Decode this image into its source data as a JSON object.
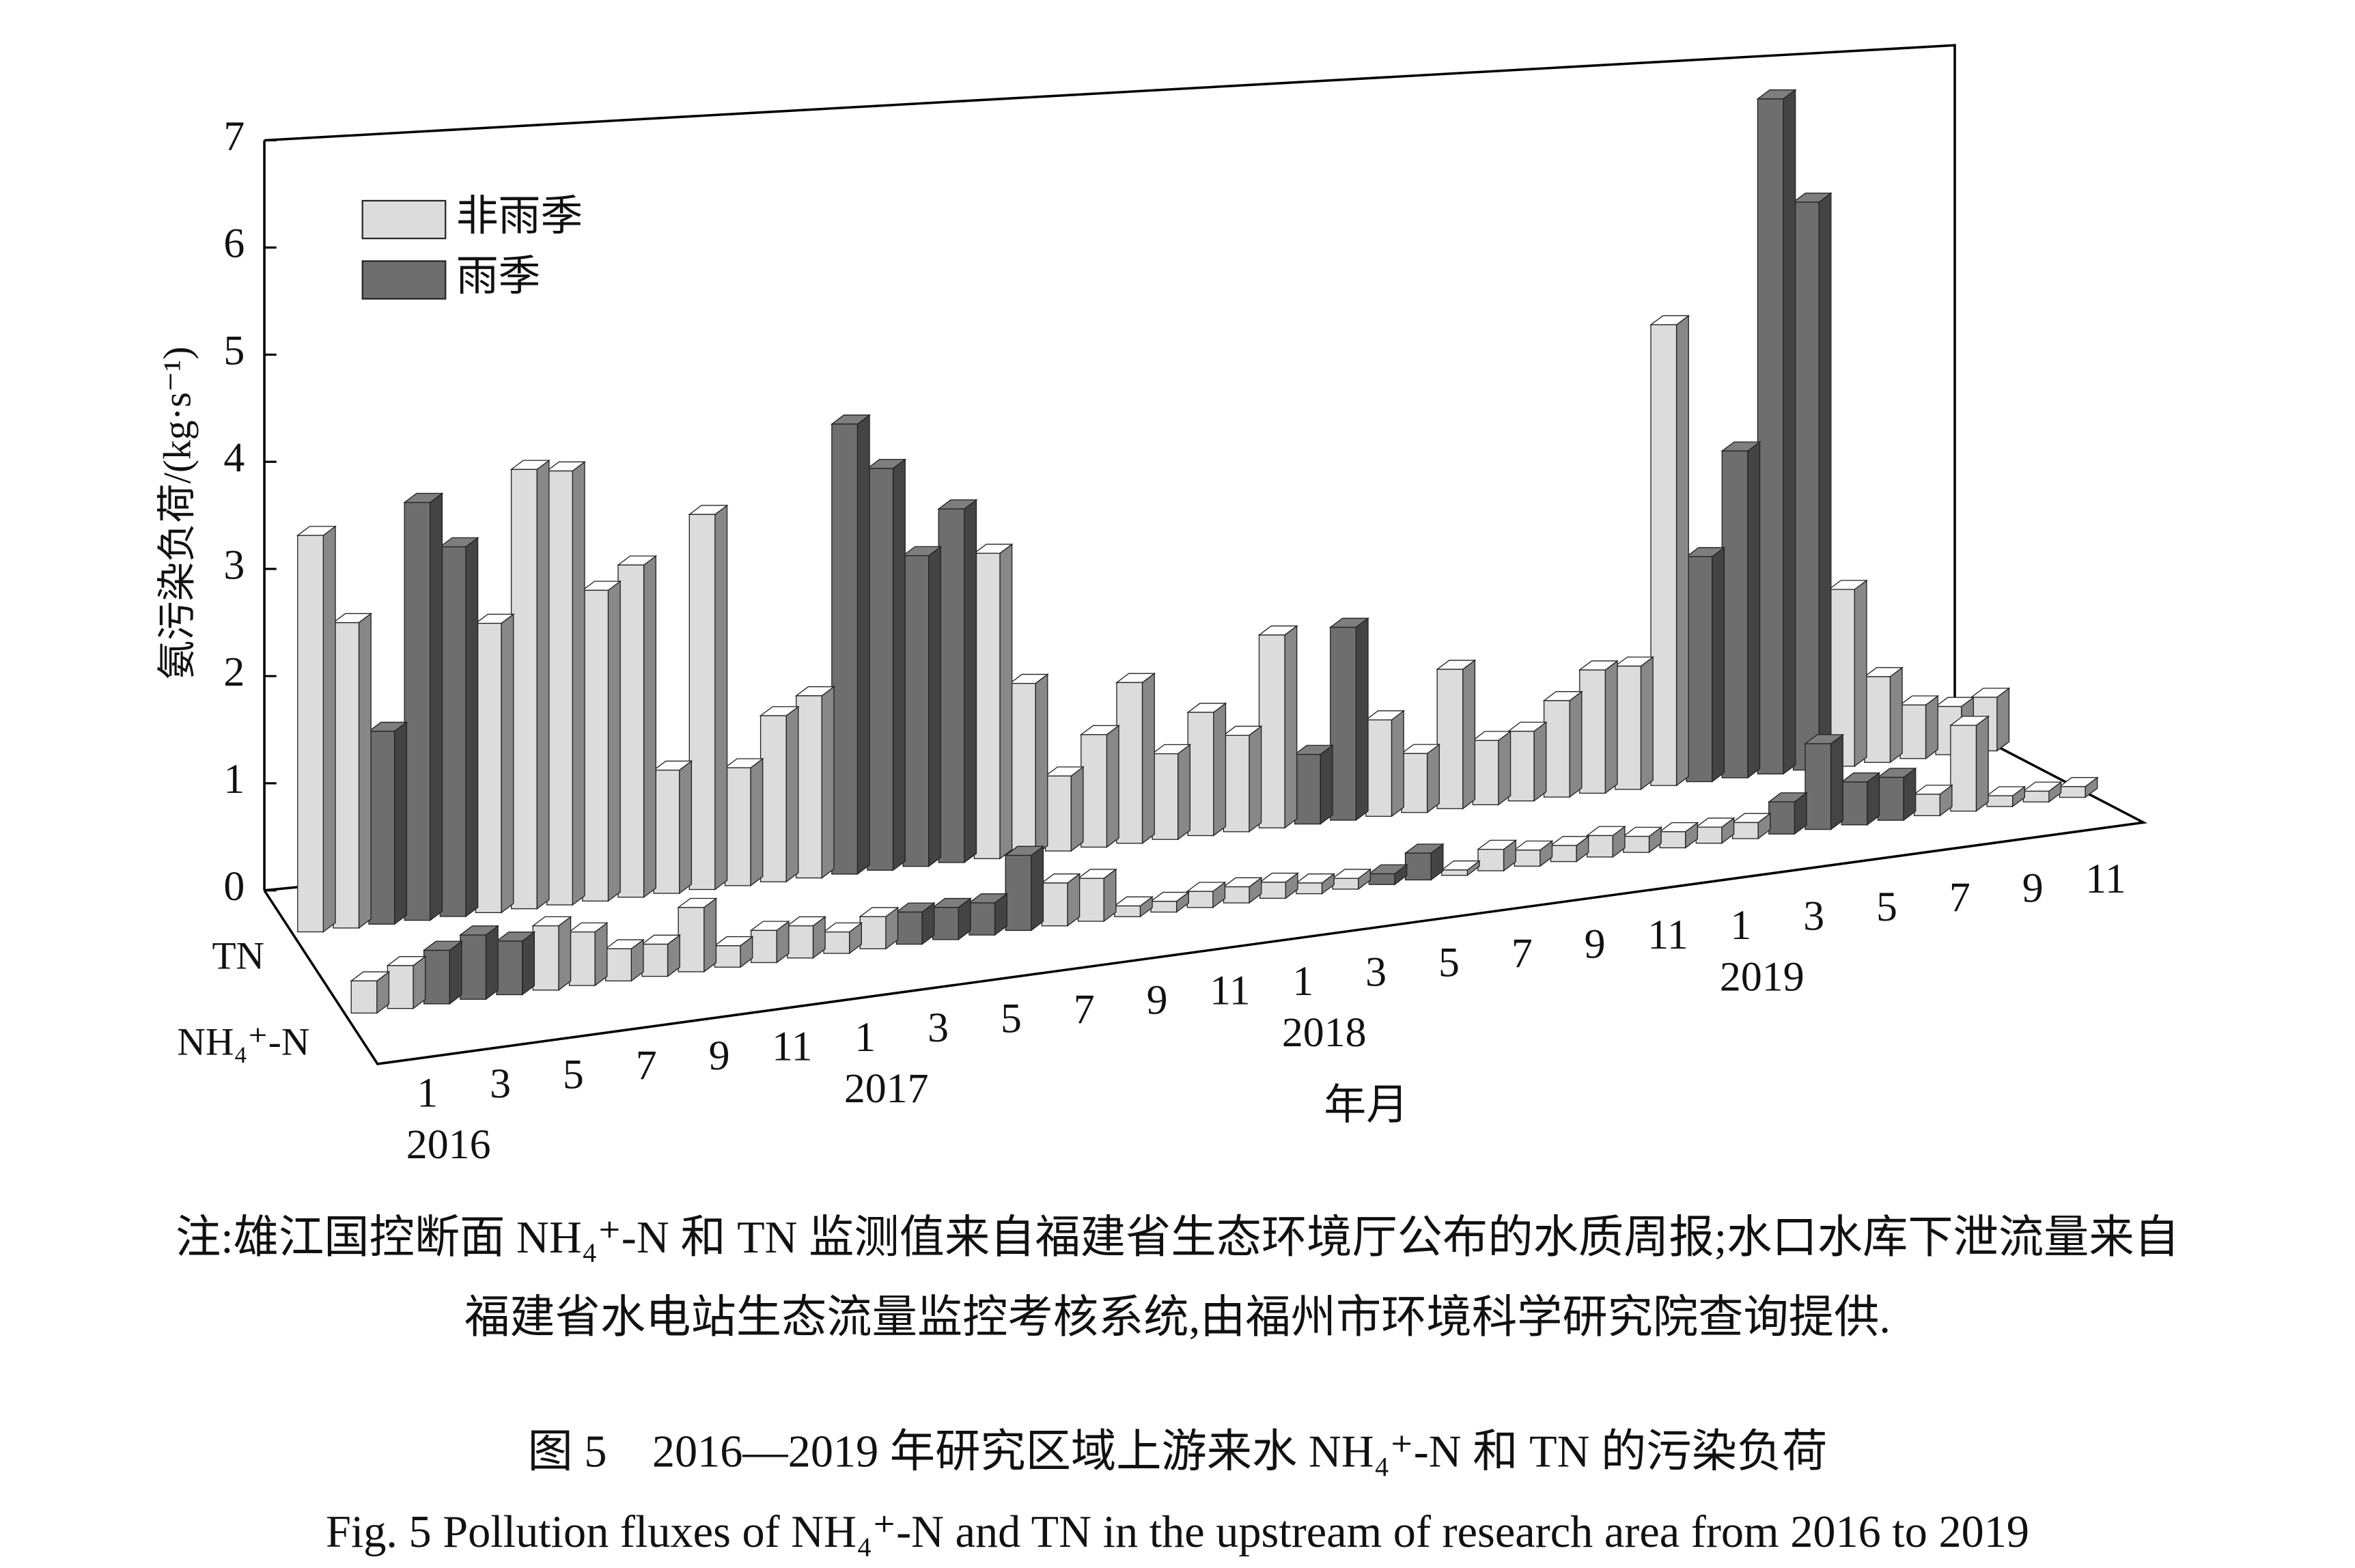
{
  "chart_data": {
    "type": "bar3d",
    "ylabel": "氨污染负荷/(kg·s⁻¹)",
    "xlabel": "年月",
    "rows": [
      "TN",
      "NH₄⁺-N"
    ],
    "categories": [
      "1",
      null,
      "3",
      null,
      "5",
      null,
      "7",
      null,
      "9",
      null,
      "11",
      null,
      "1",
      null,
      "3",
      null,
      "5",
      null,
      "7",
      null,
      "9",
      null,
      "11",
      null,
      "1",
      null,
      "3",
      null,
      "5",
      null,
      "7",
      null,
      "9",
      null,
      "11",
      null,
      "1",
      null,
      "3",
      null,
      "5",
      null,
      "7",
      null,
      "9",
      null,
      "11",
      null
    ],
    "years": [
      "2016",
      "2017",
      "2018",
      "2019"
    ],
    "ylim": [
      0,
      7
    ],
    "yticks": [
      0,
      1,
      2,
      3,
      4,
      5,
      6,
      7
    ],
    "series": [
      {
        "name": "非雨季",
        "color": "#dcdcdc",
        "values": [
          [
            3.7,
            2.85,
            null,
            null,
            null,
            2.7,
            4.1,
            4.05,
            2.9,
            3.1,
            1.15,
            3.5,
            1.1,
            1.55,
            1.7,
            null,
            null,
            null,
            null,
            2.85,
            1.6,
            0.7,
            1.05,
            1.5,
            0.8,
            1.15,
            0.9,
            1.8,
            null,
            null,
            0.9,
            0.55,
            1.3,
            0.6,
            0.65,
            0.9,
            1.15,
            1.15,
            4.3,
            null,
            null,
            null,
            null,
            1.65,
            0.8,
            0.5,
            0.45,
            0.5
          ],
          [
            0.3,
            0.4,
            null,
            null,
            null,
            0.6,
            0.5,
            0.3,
            0.3,
            0.6,
            0.2,
            0.3,
            0.3,
            0.2,
            0.3,
            null,
            null,
            null,
            null,
            0.4,
            0.4,
            0.1,
            0.1,
            0.15,
            0.15,
            0.15,
            0.1,
            0.1,
            null,
            null,
            0.05,
            0.2,
            0.15,
            0.15,
            0.2,
            0.15,
            0.15,
            0.15,
            0.15,
            null,
            null,
            null,
            null,
            0.2,
            0.8,
            0.1,
            0.1,
            0.1
          ]
        ]
      },
      {
        "name": "雨季",
        "color": "#6e6e6e",
        "values": [
          [
            null,
            null,
            1.8,
            3.9,
            3.45,
            null,
            null,
            null,
            null,
            null,
            null,
            null,
            null,
            null,
            null,
            4.2,
            3.75,
            2.9,
            3.3,
            null,
            null,
            null,
            null,
            null,
            null,
            null,
            null,
            null,
            0.65,
            1.8,
            null,
            null,
            null,
            null,
            null,
            null,
            null,
            null,
            null,
            2.1,
            3.05,
            6.3,
            5.3,
            null,
            null,
            null,
            null,
            null
          ],
          [
            null,
            null,
            0.5,
            0.6,
            0.5,
            null,
            null,
            null,
            null,
            null,
            null,
            null,
            null,
            null,
            null,
            0.3,
            0.3,
            0.3,
            0.7,
            null,
            null,
            null,
            null,
            null,
            null,
            null,
            null,
            null,
            0.1,
            0.25,
            null,
            null,
            null,
            null,
            null,
            null,
            null,
            null,
            null,
            0.3,
            0.8,
            0.4,
            0.4,
            null,
            null,
            null,
            null,
            null
          ]
        ]
      }
    ]
  },
  "note": [
    "注:雄江国控断面 NH₄⁺-N 和 TN 监测值来自福建省生态环境厅公布的水质周报;水口水库下泄流量来自",
    "福建省水电站生态流量监控考核系统,由福州市环境科学研究院查询提供."
  ],
  "caption_cn": "图 5　2016—2019 年研究区域上游来水 NH₄⁺-N 和 TN 的污染负荷",
  "caption_en": "Fig. 5  Pollution fluxes of NH₄⁺-N and TN in the upstream of research area from 2016 to 2019"
}
